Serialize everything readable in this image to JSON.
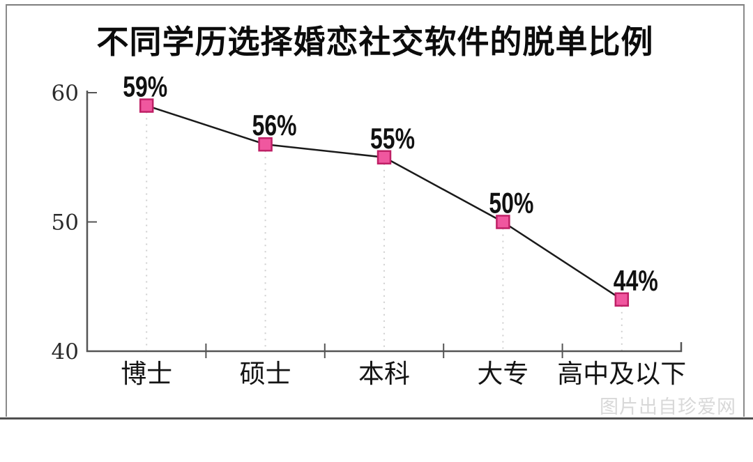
{
  "title": "不同学历选择婚恋社交软件的脱单比例",
  "watermark": "图片出自珍爱网",
  "chart_data": {
    "type": "line",
    "title": "不同学历选择婚恋社交软件的脱单比例",
    "categories": [
      "博士",
      "硕士",
      "本科",
      "大专",
      "高中及以下"
    ],
    "values": [
      59,
      56,
      55,
      50,
      44
    ],
    "data_labels": [
      "59%",
      "56%",
      "55%",
      "50%",
      "44%"
    ],
    "unit": "%",
    "xlabel": "",
    "ylabel": "",
    "ylim": [
      40,
      62
    ],
    "yticks": [
      40,
      50,
      60
    ],
    "grid": false,
    "legend": "none",
    "marker_shape": "square",
    "guide_lines": "dashed vertical line from each marker down to x-axis",
    "colors": {
      "line": "#1a1a1a",
      "marker_fill": "#f0579f",
      "marker_stroke": "#bf2066",
      "guide": "#cfcfcf",
      "axis": "#555555",
      "data_label": "#111111",
      "tick_label": "#2b2b2b",
      "category_label": "#141414",
      "watermark": "#d8d8d8"
    }
  }
}
